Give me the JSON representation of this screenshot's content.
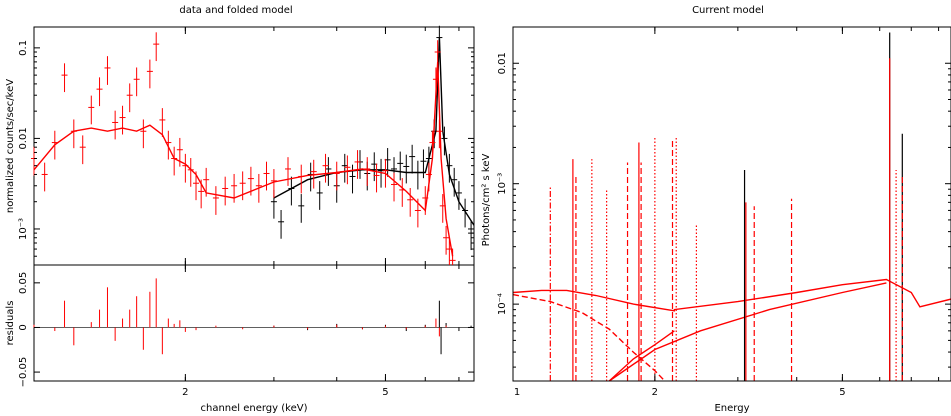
{
  "chart_data": [
    {
      "type": "line",
      "title": "data and folded model",
      "panels": [
        {
          "name": "upper",
          "ylabel": "normalized counts/sec/keV",
          "yscale": "log",
          "ylim": [
            0.0004,
            0.17
          ],
          "yticks": [
            {
              "v": 0.001,
              "label": "10⁻³"
            },
            {
              "v": 0.01,
              "label": "0.01"
            },
            {
              "v": 0.1,
              "label": "0.1"
            }
          ]
        },
        {
          "name": "lower",
          "ylabel": "residuals",
          "yscale": "linear",
          "ylim": [
            -0.06,
            0.07
          ],
          "yticks": [
            {
              "v": -0.05,
              "label": "−0.05"
            },
            {
              "v": 0,
              "label": "0"
            },
            {
              "v": 0.05,
              "label": "0.05"
            }
          ]
        }
      ],
      "xlabel": "channel energy (keV)",
      "xscale": "log",
      "xlim": [
        1,
        7.5
      ],
      "xticks": [
        {
          "v": 2,
          "label": "2"
        },
        {
          "v": 5,
          "label": "5"
        }
      ],
      "series": [
        {
          "color": "#000000",
          "model": [
            [
              3.0,
              0.0022
            ],
            [
              3.5,
              0.0035
            ],
            [
              4.0,
              0.0042
            ],
            [
              4.5,
              0.0045
            ],
            [
              5.0,
              0.0045
            ],
            [
              5.5,
              0.0042
            ],
            [
              6.0,
              0.0042
            ],
            [
              6.3,
              0.012
            ],
            [
              6.4,
              0.13
            ],
            [
              6.5,
              0.012
            ],
            [
              6.7,
              0.004
            ],
            [
              7.0,
              0.002
            ],
            [
              7.5,
              0.0011
            ]
          ],
          "data_points": [
            [
              3.0,
              0.002
            ],
            [
              3.1,
              0.0012
            ],
            [
              3.25,
              0.0028
            ],
            [
              3.4,
              0.0018
            ],
            [
              3.55,
              0.004
            ],
            [
              3.7,
              0.0025
            ],
            [
              3.85,
              0.0046
            ],
            [
              4.0,
              0.003
            ],
            [
              4.15,
              0.005
            ],
            [
              4.3,
              0.0038
            ],
            [
              4.45,
              0.0055
            ],
            [
              4.6,
              0.0041
            ],
            [
              4.75,
              0.0052
            ],
            [
              4.9,
              0.0044
            ],
            [
              5.05,
              0.0058
            ],
            [
              5.2,
              0.0046
            ],
            [
              5.35,
              0.0053
            ],
            [
              5.5,
              0.0049
            ],
            [
              5.65,
              0.0063
            ],
            [
              5.8,
              0.0042
            ],
            [
              5.95,
              0.0056
            ],
            [
              6.1,
              0.006
            ],
            [
              6.25,
              0.012
            ],
            [
              6.4,
              0.13
            ],
            [
              6.55,
              0.01
            ],
            [
              6.7,
              0.005
            ],
            [
              6.85,
              0.0035
            ],
            [
              7.0,
              0.0025
            ],
            [
              7.2,
              0.0016
            ],
            [
              7.4,
              0.0009
            ]
          ],
          "residuals": [
            [
              3.0,
              0.002
            ],
            [
              3.5,
              -0.003
            ],
            [
              4.0,
              0.004
            ],
            [
              4.5,
              -0.002
            ],
            [
              5.0,
              0.003
            ],
            [
              5.5,
              -0.004
            ],
            [
              6.0,
              0.003
            ],
            [
              6.4,
              0.03
            ],
            [
              6.45,
              -0.03
            ],
            [
              6.6,
              0.005
            ],
            [
              7.0,
              -0.004
            ],
            [
              7.4,
              0.002
            ]
          ]
        },
        {
          "color": "#ff0000",
          "model": [
            [
              1.0,
              0.0045
            ],
            [
              1.1,
              0.0085
            ],
            [
              1.2,
              0.012
            ],
            [
              1.3,
              0.013
            ],
            [
              1.4,
              0.012
            ],
            [
              1.5,
              0.013
            ],
            [
              1.6,
              0.012
            ],
            [
              1.7,
              0.014
            ],
            [
              1.8,
              0.011
            ],
            [
              1.9,
              0.006
            ],
            [
              2.0,
              0.0052
            ],
            [
              2.1,
              0.004
            ],
            [
              2.2,
              0.0025
            ],
            [
              2.5,
              0.0022
            ],
            [
              3.0,
              0.0033
            ],
            [
              3.5,
              0.0039
            ],
            [
              4.0,
              0.0042
            ],
            [
              4.5,
              0.0046
            ],
            [
              5.0,
              0.0041
            ],
            [
              5.5,
              0.0026
            ],
            [
              6.0,
              0.0016
            ],
            [
              6.2,
              0.006
            ],
            [
              6.35,
              0.07
            ],
            [
              6.45,
              0.006
            ],
            [
              6.6,
              0.0013
            ],
            [
              6.8,
              0.0005
            ]
          ],
          "data_points": [
            [
              1.0,
              0.006
            ],
            [
              1.05,
              0.004
            ],
            [
              1.1,
              0.009
            ],
            [
              1.15,
              0.05
            ],
            [
              1.2,
              0.012
            ],
            [
              1.25,
              0.008
            ],
            [
              1.3,
              0.022
            ],
            [
              1.35,
              0.035
            ],
            [
              1.4,
              0.06
            ],
            [
              1.45,
              0.015
            ],
            [
              1.5,
              0.017
            ],
            [
              1.55,
              0.03
            ],
            [
              1.6,
              0.045
            ],
            [
              1.65,
              0.012
            ],
            [
              1.7,
              0.055
            ],
            [
              1.75,
              0.11
            ],
            [
              1.8,
              0.016
            ],
            [
              1.85,
              0.009
            ],
            [
              1.9,
              0.006
            ],
            [
              1.95,
              0.0075
            ],
            [
              2.0,
              0.005
            ],
            [
              2.05,
              0.0045
            ],
            [
              2.1,
              0.0032
            ],
            [
              2.15,
              0.0026
            ],
            [
              2.2,
              0.0035
            ],
            [
              2.3,
              0.0022
            ],
            [
              2.4,
              0.0028
            ],
            [
              2.5,
              0.003
            ],
            [
              2.6,
              0.0032
            ],
            [
              2.7,
              0.0036
            ],
            [
              2.8,
              0.003
            ],
            [
              2.9,
              0.0041
            ],
            [
              3.0,
              0.0034
            ],
            [
              3.2,
              0.0046
            ],
            [
              3.4,
              0.0038
            ],
            [
              3.6,
              0.0043
            ],
            [
              3.8,
              0.005
            ],
            [
              4.0,
              0.0041
            ],
            [
              4.2,
              0.0048
            ],
            [
              4.4,
              0.0055
            ],
            [
              4.6,
              0.0046
            ],
            [
              4.8,
              0.0039
            ],
            [
              5.0,
              0.0044
            ],
            [
              5.2,
              0.0031
            ],
            [
              5.4,
              0.0027
            ],
            [
              5.6,
              0.0021
            ],
            [
              5.8,
              0.0016
            ],
            [
              6.0,
              0.0022
            ],
            [
              6.1,
              0.004
            ],
            [
              6.2,
              0.009
            ],
            [
              6.3,
              0.045
            ],
            [
              6.35,
              0.09
            ],
            [
              6.4,
              0.012
            ],
            [
              6.5,
              0.0018
            ],
            [
              6.6,
              0.0008
            ],
            [
              6.7,
              0.0006
            ],
            [
              6.8,
              0.00045
            ]
          ],
          "residuals": [
            [
              1.0,
              0.003
            ],
            [
              1.1,
              -0.004
            ],
            [
              1.15,
              0.03
            ],
            [
              1.2,
              -0.02
            ],
            [
              1.3,
              0.006
            ],
            [
              1.35,
              0.02
            ],
            [
              1.4,
              0.045
            ],
            [
              1.45,
              -0.015
            ],
            [
              1.5,
              0.01
            ],
            [
              1.55,
              0.02
            ],
            [
              1.6,
              0.035
            ],
            [
              1.65,
              -0.025
            ],
            [
              1.7,
              0.04
            ],
            [
              1.75,
              0.055
            ],
            [
              1.8,
              -0.03
            ],
            [
              1.85,
              0.01
            ],
            [
              1.9,
              0.004
            ],
            [
              1.95,
              0.008
            ],
            [
              2.0,
              -0.005
            ],
            [
              2.1,
              -0.003
            ],
            [
              2.3,
              0.002
            ],
            [
              2.6,
              -0.002
            ],
            [
              3.0,
              0.002
            ],
            [
              3.5,
              -0.002
            ],
            [
              4.0,
              0.003
            ],
            [
              4.5,
              -0.002
            ],
            [
              5.0,
              0.002
            ],
            [
              5.5,
              -0.002
            ],
            [
              6.0,
              0.002
            ],
            [
              6.3,
              0.01
            ],
            [
              6.4,
              -0.01
            ],
            [
              6.6,
              0.002
            ]
          ]
        }
      ]
    },
    {
      "type": "line",
      "title": "Current model",
      "xlabel": "Energy",
      "ylabel": "Photons/cm² s keV",
      "xscale": "log",
      "yscale": "log",
      "xlim": [
        1,
        8.5
      ],
      "ylim": [
        2.3e-05,
        0.02
      ],
      "xticks": [
        {
          "v": 1,
          "label": "1"
        },
        {
          "v": 2,
          "label": "2"
        },
        {
          "v": 5,
          "label": "5"
        }
      ],
      "yticks": [
        {
          "v": 0.0001,
          "label": "10⁻⁴"
        },
        {
          "v": 0.001,
          "label": "10⁻³"
        },
        {
          "v": 0.01,
          "label": "0.01"
        }
      ],
      "series": [
        {
          "color": "#ff0000",
          "style": "solid",
          "role": "total",
          "points": [
            [
              1.0,
              0.000125
            ],
            [
              1.15,
              0.00013
            ],
            [
              1.3,
              0.00013
            ],
            [
              1.5,
              0.000118
            ],
            [
              1.8,
              0.0001
            ],
            [
              2.2,
              8.8e-05
            ],
            [
              2.2,
              9e-05
            ],
            [
              3.0,
              0.000105
            ],
            [
              4.0,
              0.000125
            ],
            [
              5.0,
              0.000145
            ],
            [
              6.2,
              0.00016
            ],
            [
              7.0,
              0.000125
            ],
            [
              7.3,
              9.5e-05
            ],
            [
              8.5,
              0.00011
            ]
          ]
        },
        {
          "color": "#ff0000",
          "style": "solid",
          "role": "hard component",
          "points": [
            [
              1.6,
              2.3e-05
            ],
            [
              2.0,
              4.2e-05
            ],
            [
              2.5,
              6e-05
            ],
            [
              3.5,
              9e-05
            ],
            [
              5.0,
              0.000125
            ],
            [
              6.2,
              0.00015
            ]
          ]
        },
        {
          "color": "#ff0000",
          "style": "dashed",
          "role": "soft component",
          "points": [
            [
              1.0,
              0.00012
            ],
            [
              1.2,
              0.000105
            ],
            [
              1.4,
              8.5e-05
            ],
            [
              1.6,
              6.2e-05
            ],
            [
              1.8,
              4e-05
            ],
            [
              2.0,
              2.8e-05
            ],
            [
              2.1,
              2.3e-05
            ]
          ]
        },
        {
          "color": "#ff0000",
          "style": "solid",
          "role": "soft rise",
          "points": [
            [
              1.6,
              2.3e-05
            ],
            [
              1.8,
              3.5e-05
            ],
            [
              2.0,
              4.6e-05
            ],
            [
              2.2,
              6e-05
            ]
          ]
        }
      ],
      "lines": [
        {
          "x": 1.2,
          "peak": 0.00095,
          "style": "dashdot",
          "color": "#ff0000"
        },
        {
          "x": 1.34,
          "peak": 0.0016,
          "style": "solid",
          "color": "#ff0000"
        },
        {
          "x": 1.36,
          "peak": 0.0012,
          "style": "dashed",
          "color": "#ff0000"
        },
        {
          "x": 1.47,
          "peak": 0.0016,
          "style": "dotted",
          "color": "#ff0000"
        },
        {
          "x": 1.58,
          "peak": 0.0009,
          "style": "dotted",
          "color": "#ff0000"
        },
        {
          "x": 1.75,
          "peak": 0.0015,
          "style": "dashed",
          "color": "#ff0000"
        },
        {
          "x": 1.85,
          "peak": 0.0022,
          "style": "solid",
          "color": "#ff0000"
        },
        {
          "x": 1.87,
          "peak": 0.0015,
          "style": "dashed",
          "color": "#ff0000"
        },
        {
          "x": 2.0,
          "peak": 0.0024,
          "style": "dotted",
          "color": "#ff0000"
        },
        {
          "x": 2.18,
          "peak": 0.0023,
          "style": "dashed",
          "color": "#ff0000"
        },
        {
          "x": 2.22,
          "peak": 0.0024,
          "style": "dotted",
          "color": "#ff0000"
        },
        {
          "x": 2.45,
          "peak": 0.00045,
          "style": "dotted",
          "color": "#ff0000"
        },
        {
          "x": 3.1,
          "peak": 0.0013,
          "style": "solid",
          "color": "#000000"
        },
        {
          "x": 3.12,
          "peak": 0.0007,
          "style": "solid",
          "color": "#ff0000"
        },
        {
          "x": 3.25,
          "peak": 0.00065,
          "style": "dashed",
          "color": "#ff0000"
        },
        {
          "x": 3.9,
          "peak": 0.00075,
          "style": "dashed",
          "color": "#ff0000"
        },
        {
          "x": 6.3,
          "peak": 0.018,
          "style": "solid",
          "color": "#000000"
        },
        {
          "x": 6.3,
          "peak": 0.011,
          "style": "solid",
          "color": "#ff0000"
        },
        {
          "x": 6.5,
          "peak": 0.0013,
          "style": "dotted",
          "color": "#ff0000"
        },
        {
          "x": 6.7,
          "peak": 0.0026,
          "style": "solid",
          "color": "#000000"
        },
        {
          "x": 6.7,
          "peak": 0.0012,
          "style": "dashed",
          "color": "#ff0000"
        }
      ]
    }
  ]
}
